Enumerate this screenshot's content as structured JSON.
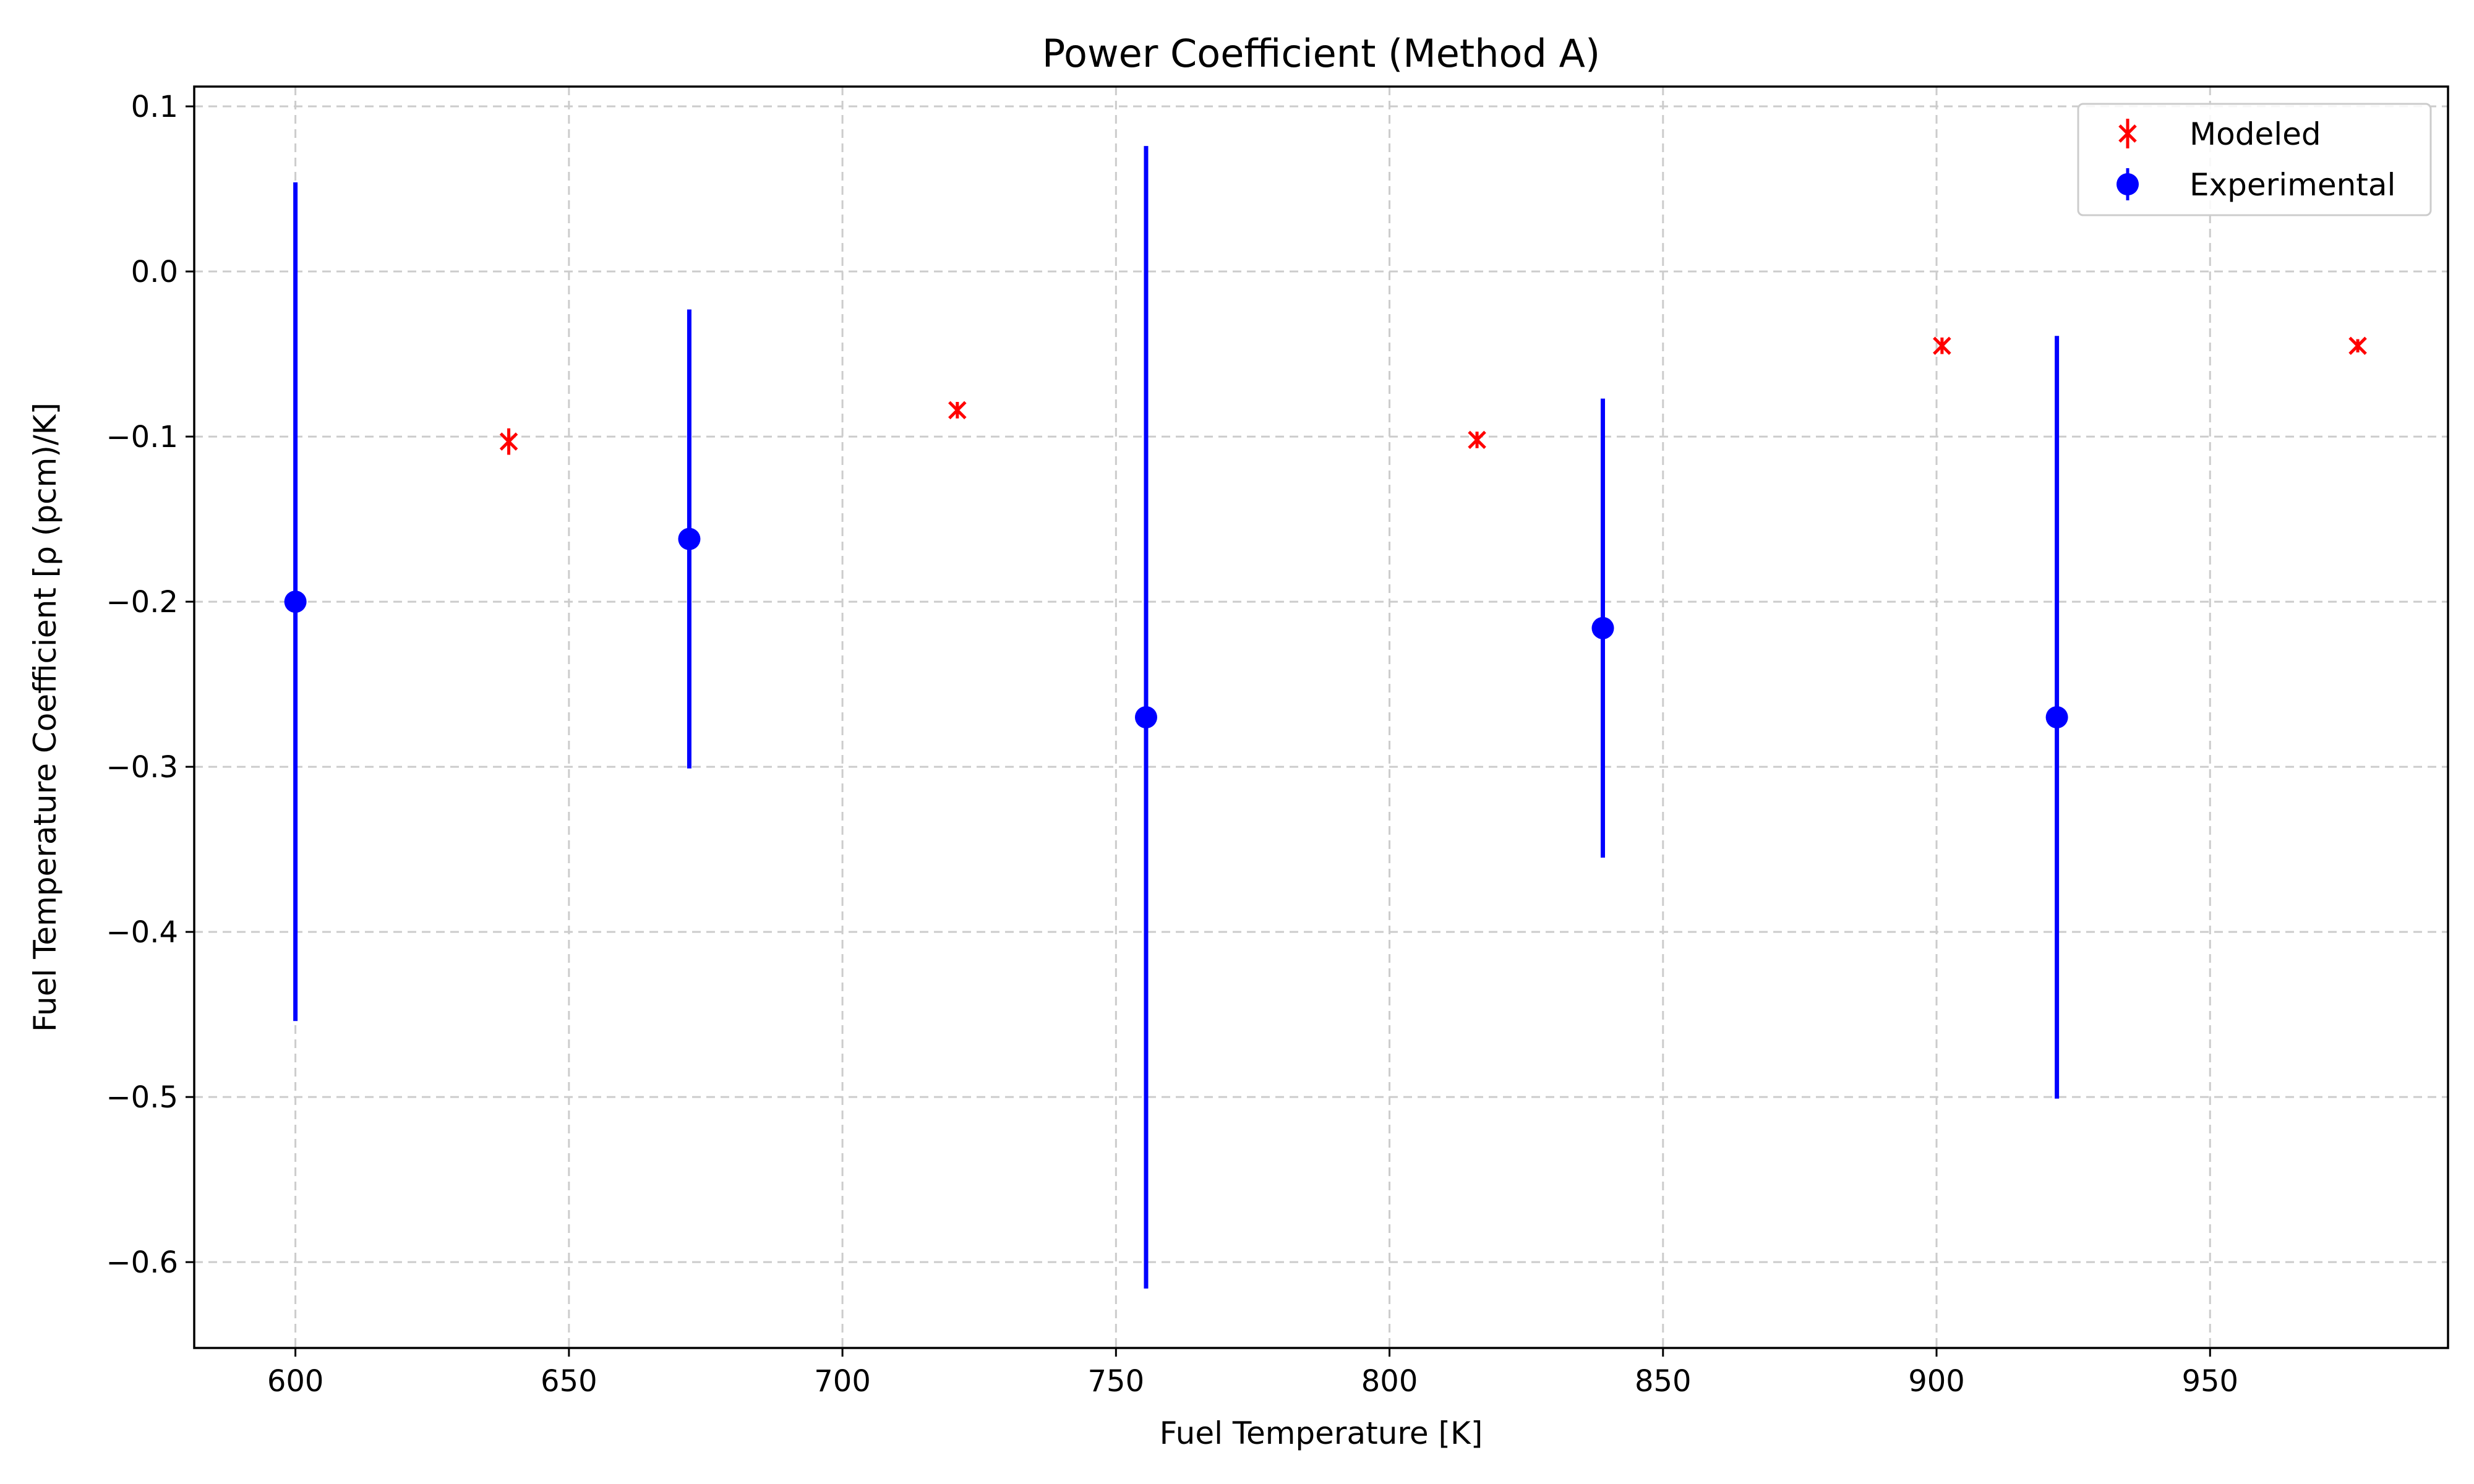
{
  "chart_data": {
    "type": "scatter",
    "title": "Power Coefficient (Method A)",
    "xlabel": "Fuel Temperature [K]",
    "ylabel": "Fuel Temperature Coefficient [ρ (pcm)/K]",
    "xlim": [
      581.5,
      993.5
    ],
    "ylim": [
      -0.652,
      0.112
    ],
    "xticks": [
      600,
      650,
      700,
      750,
      800,
      850,
      900,
      950
    ],
    "xtick_labels": [
      "600",
      "650",
      "700",
      "750",
      "800",
      "850",
      "900",
      "950"
    ],
    "yticks": [
      0.1,
      0.0,
      -0.1,
      -0.2,
      -0.3,
      -0.4,
      -0.5,
      -0.6
    ],
    "ytick_labels": [
      "0.1",
      "0.0",
      "−0.1",
      "−0.2",
      "−0.3",
      "−0.4",
      "−0.5",
      "−0.6"
    ],
    "grid": true,
    "legend_position": "top-right",
    "series": [
      {
        "name": "Modeled",
        "color": "#ff0000",
        "marker": "x",
        "points": [
          {
            "x": 639,
            "y": -0.103,
            "err": 0.008
          },
          {
            "x": 721,
            "y": -0.084,
            "err": 0.005
          },
          {
            "x": 816,
            "y": -0.102,
            "err": 0.005
          },
          {
            "x": 901,
            "y": -0.045,
            "err": 0.005
          },
          {
            "x": 977,
            "y": -0.045,
            "err": 0.004
          }
        ]
      },
      {
        "name": "Experimental",
        "color": "#0000ff",
        "marker": "o",
        "points": [
          {
            "x": 600,
            "y": -0.2,
            "err": 0.254
          },
          {
            "x": 672,
            "y": -0.162,
            "err": 0.139
          },
          {
            "x": 755.5,
            "y": -0.27,
            "err": 0.346
          },
          {
            "x": 839,
            "y": -0.216,
            "err": 0.139
          },
          {
            "x": 922,
            "y": -0.27,
            "err": 0.231
          }
        ]
      }
    ]
  }
}
